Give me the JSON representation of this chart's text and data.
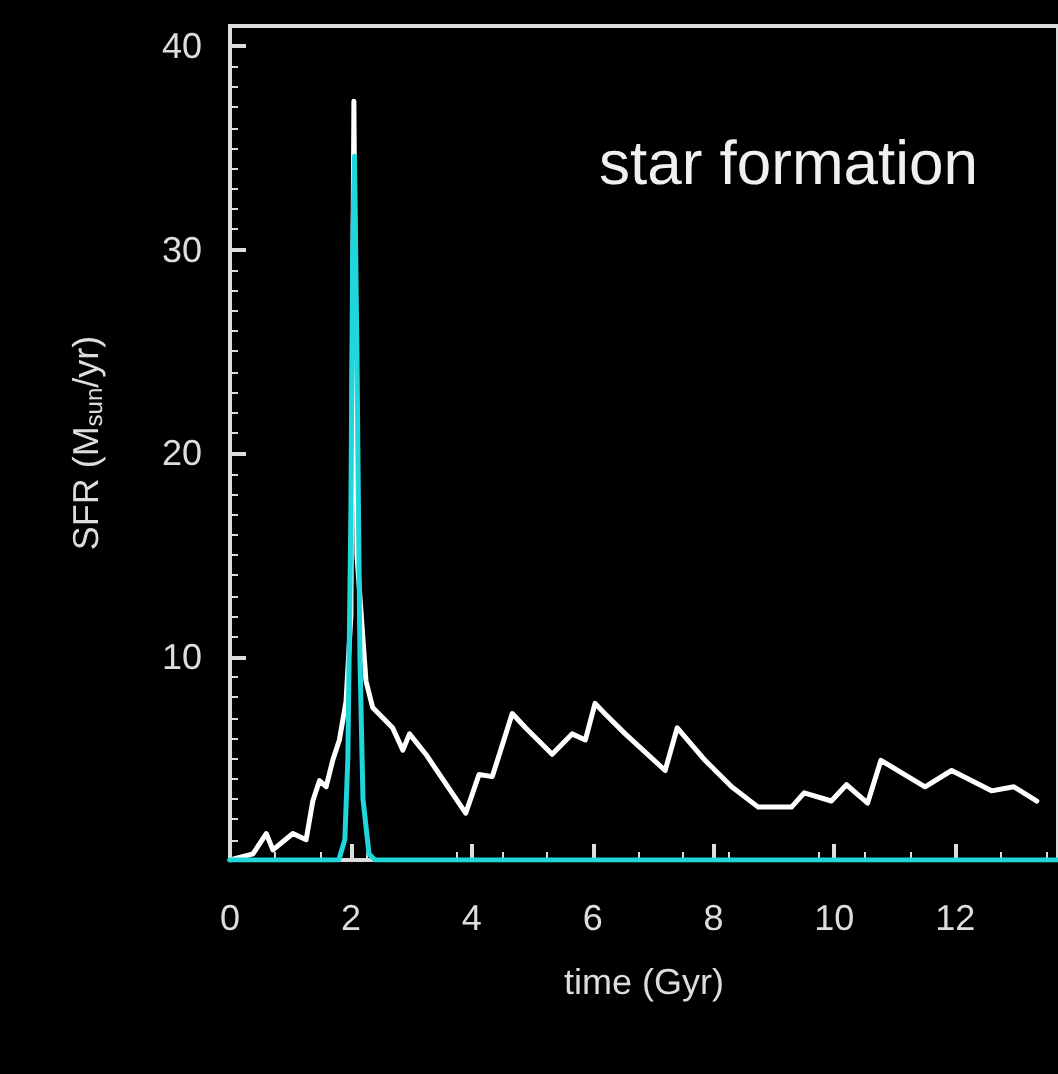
{
  "chart_data": {
    "type": "line",
    "xlabel": "time (Gyr)",
    "ylabel": "SFR (M$_{sun}$/yr)",
    "annotations": [
      "star formation"
    ],
    "xlim": [
      0,
      13.7
    ],
    "xticks": [
      0,
      2,
      4,
      6,
      8,
      10,
      12
    ],
    "ylim": [
      0,
      41
    ],
    "yticks": [
      {
        "value": 0,
        "label": null
      },
      10,
      20,
      30,
      40
    ],
    "marker": "none",
    "line_style": "solid",
    "series": [
      {
        "color": "#ffffff",
        "x": [
          0,
          0.38,
          0.6,
          0.71,
          1.04,
          1.26,
          1.37,
          1.48,
          1.59,
          1.7,
          1.81,
          1.92,
          2.0,
          2.05,
          2.1,
          2.25,
          2.36,
          2.69,
          2.86,
          2.97,
          3.24,
          3.9,
          4.12,
          4.34,
          4.67,
          4.89,
          5.33,
          5.66,
          5.88,
          6.04,
          6.2,
          6.54,
          7.2,
          7.4,
          7.86,
          8.3,
          8.74,
          9.29,
          9.5,
          9.95,
          10.2,
          10.55,
          10.77,
          11.5,
          11.94,
          12.6,
          12.97,
          13.35
        ],
        "values": [
          0,
          0.3,
          1.3,
          0.5,
          1.3,
          1.0,
          2.9,
          3.9,
          3.6,
          4.9,
          5.9,
          7.8,
          12,
          37.3,
          15,
          8.8,
          7.5,
          6.5,
          5.4,
          6.2,
          5.2,
          2.3,
          4.2,
          4.1,
          7.2,
          6.5,
          5.2,
          6.2,
          5.9,
          7.7,
          7.2,
          6.2,
          4.4,
          6.5,
          4.9,
          3.6,
          2.6,
          2.6,
          3.3,
          2.9,
          3.7,
          2.8,
          4.9,
          3.6,
          4.4,
          3.4,
          3.6,
          2.9
        ]
      },
      {
        "color": "#1fd6da",
        "x": [
          0,
          1.8,
          1.9,
          1.95,
          2.0,
          2.03,
          2.06,
          2.1,
          2.15,
          2.2,
          2.3,
          2.4,
          13.7
        ],
        "values": [
          0,
          0,
          1,
          5,
          17,
          30,
          34.6,
          25,
          10,
          3,
          0.3,
          0,
          0
        ]
      }
    ]
  }
}
